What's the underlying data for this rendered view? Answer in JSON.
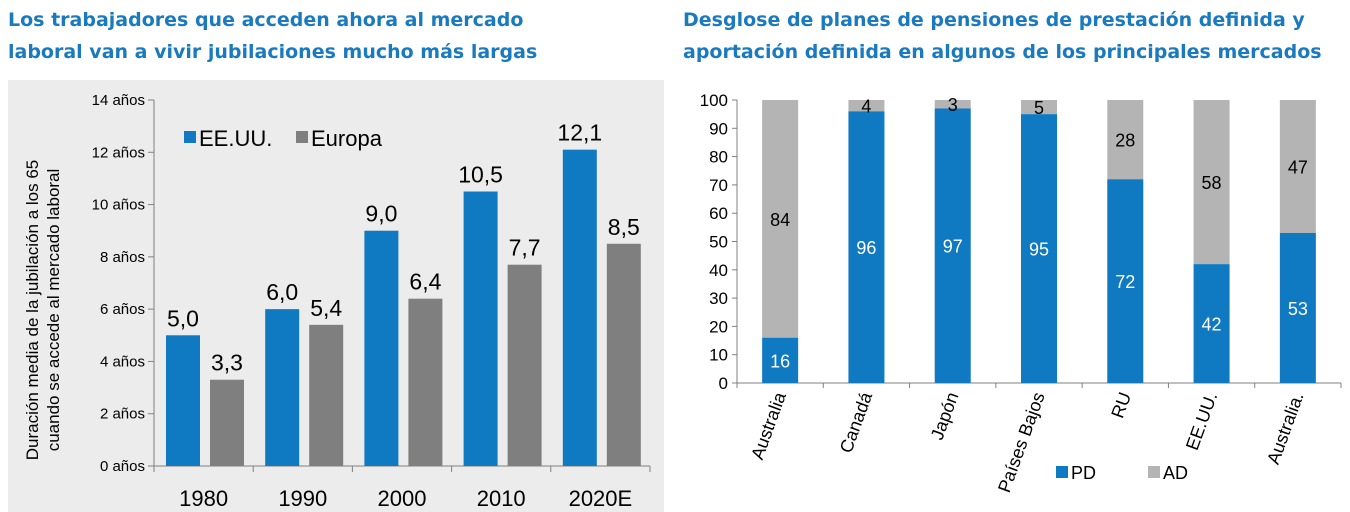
{
  "left": {
    "title_line1": "Los trabajadores que acceden ahora al mercado",
    "title_line2": "laboral van a vivir jubilaciones mucho más largas",
    "chart_data": {
      "type": "bar",
      "categories": [
        "1980",
        "1990",
        "2000",
        "2010",
        "2020E"
      ],
      "series": [
        {
          "name": "EE.UU.",
          "color": "#0f79c1",
          "values": [
            5.0,
            6.0,
            9.0,
            10.5,
            12.1
          ],
          "labels": [
            "5,0",
            "6,0",
            "9,0",
            "10,5",
            "12,1"
          ]
        },
        {
          "name": "Europa",
          "color": "#7f7f7f",
          "values": [
            3.3,
            5.4,
            6.4,
            7.7,
            8.5
          ],
          "labels": [
            "3,3",
            "5,4",
            "6,4",
            "7,7",
            "8,5"
          ]
        }
      ],
      "ylabel_line1": "Duración media de la jubilación a los 65",
      "ylabel_line2": "cuando se accede al mercado laboral",
      "ylim": [
        0,
        14
      ],
      "yticks": [
        0,
        2,
        4,
        6,
        8,
        10,
        12,
        14
      ],
      "ytick_labels": [
        "0 años",
        "2 años",
        "4 años",
        "6 años",
        "8 años",
        "10 años",
        "12 años",
        "14 años"
      ],
      "legend_position": "top-left",
      "grid": false
    }
  },
  "right": {
    "title_line1": "Desglose de planes de pensiones de prestación definida y",
    "title_line2": "aportación definida en algunos de los principales mercados",
    "chart_data": {
      "type": "bar",
      "stacked": true,
      "categories": [
        "Australia",
        "Canadá",
        "Japón",
        "Países Bajos",
        "RU",
        "EE.UU.",
        "Australia."
      ],
      "series": [
        {
          "name": "PD",
          "color": "#0f79c1",
          "values": [
            16,
            96,
            97,
            95,
            72,
            42,
            53
          ]
        },
        {
          "name": "AD",
          "color": "#b4b4b4",
          "values": [
            84,
            4,
            3,
            5,
            28,
            58,
            47
          ]
        }
      ],
      "ylim": [
        0,
        100
      ],
      "yticks": [
        0,
        10,
        20,
        30,
        40,
        50,
        60,
        70,
        80,
        90,
        100
      ],
      "legend_position": "bottom",
      "grid": false
    }
  }
}
